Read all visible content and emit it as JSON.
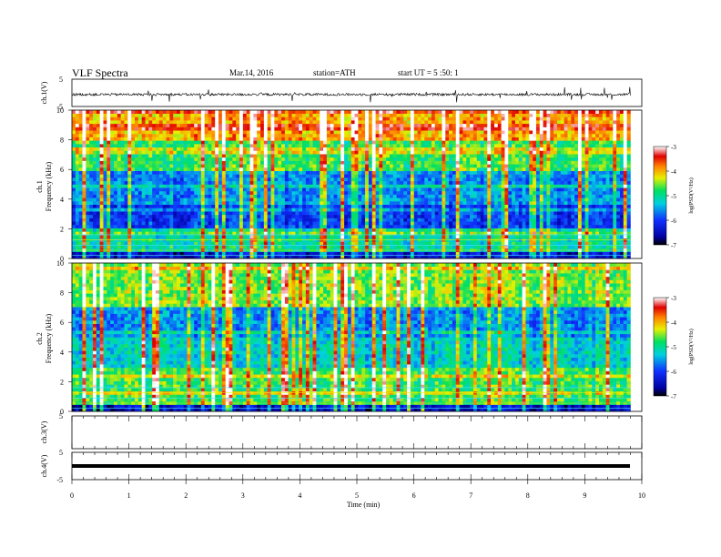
{
  "header": {
    "title": "VLF  Spectra",
    "date": "Mar.14, 2016",
    "station": "station=ATH",
    "start": "start  UT  =   5  :50: 1"
  },
  "chart_data": [
    {
      "type": "line",
      "panel": "ch1",
      "ylabel": "ch.1(V)",
      "ylim": [
        -5,
        5
      ],
      "yticks": [
        "5",
        "-5"
      ],
      "x_range": [
        0,
        9.8
      ],
      "baseline": -0.6
    },
    {
      "type": "heatmap",
      "panel": "spec1",
      "ylabel_channel": "ch.1",
      "ylabel": "Frequency  (kHz)",
      "ylim": [
        0,
        10
      ],
      "yticks": [
        "0",
        "2",
        "4",
        "6",
        "8",
        "10"
      ],
      "x_range": [
        0,
        9.8
      ],
      "colorbar": {
        "label": "log(PSD(V²/Hz)",
        "ticks": [
          "-3",
          "-4",
          "-5",
          "-6",
          "-7"
        ],
        "range": [
          -7,
          -3
        ]
      }
    },
    {
      "type": "heatmap",
      "panel": "spec2",
      "ylabel_channel": "ch.2",
      "ylabel": "Frequency  (kHz)",
      "ylim": [
        0,
        10
      ],
      "yticks": [
        "0",
        "2",
        "4",
        "6",
        "8",
        "10"
      ],
      "x_range": [
        0,
        9.8
      ],
      "colorbar": {
        "label": "log(PSD(V²/Hz)",
        "ticks": [
          "-3",
          "-4",
          "-5",
          "-6",
          "-7"
        ],
        "range": [
          -7,
          -3
        ]
      }
    },
    {
      "type": "line",
      "panel": "ch3",
      "ylabel": "ch.3(V)",
      "ylim": [
        -5,
        5
      ],
      "yticks": [
        "5",
        "-5"
      ]
    },
    {
      "type": "line",
      "panel": "ch4",
      "ylabel": "ch.4(V)",
      "ylim": [
        -5,
        5
      ],
      "yticks": [
        "5",
        "-5"
      ],
      "x_range": [
        0,
        9.8
      ],
      "baseline": 0
    }
  ],
  "xaxis": {
    "label": "Time  (min)",
    "ticks": [
      "0",
      "1",
      "2",
      "3",
      "4",
      "5",
      "6",
      "7",
      "8",
      "9",
      "10"
    ],
    "range": [
      0,
      10
    ]
  }
}
